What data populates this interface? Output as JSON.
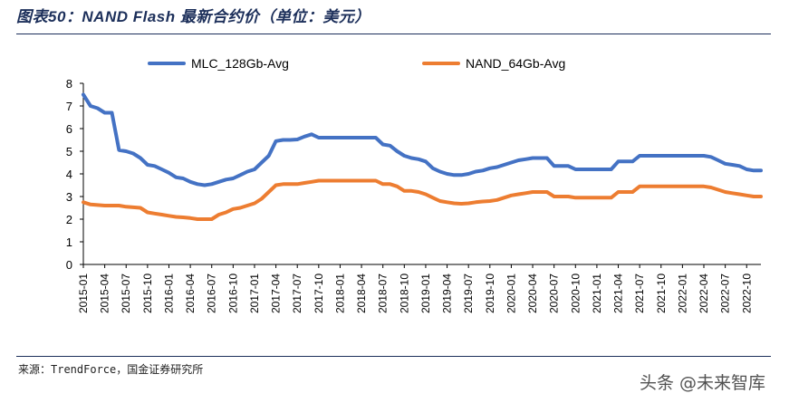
{
  "header": {
    "title": "图表50：NAND Flash 最新合约价（单位：美元）"
  },
  "footer": {
    "source": "来源：TrendForce，国金证券研究所",
    "watermark": "头条 @未来智库"
  },
  "chart_data": {
    "type": "line",
    "title": "",
    "xlabel": "",
    "ylabel": "",
    "ylim": [
      0,
      8
    ],
    "yticks": [
      "0",
      "1",
      "2",
      "3",
      "4",
      "5",
      "6",
      "7",
      "8"
    ],
    "grid": false,
    "legend_position": "top",
    "x_start": "2015-01",
    "x_end": "2022-12",
    "xtick_labels": [
      "2015-01",
      "2015-04",
      "2015-07",
      "2015-10",
      "2016-01",
      "2016-04",
      "2016-07",
      "2016-10",
      "2017-01",
      "2017-04",
      "2017-07",
      "2017-10",
      "2018-01",
      "2018-04",
      "2018-07",
      "2018-10",
      "2019-01",
      "2019-04",
      "2019-07",
      "2019-10",
      "2020-01",
      "2020-04",
      "2020-07",
      "2020-10",
      "2021-01",
      "2021-04",
      "2021-07",
      "2021-10",
      "2022-01",
      "2022-04",
      "2022-07",
      "2022-10"
    ],
    "series": [
      {
        "name": "MLC_128Gb-Avg",
        "color": "#4472c4",
        "points": [
          [
            "2015-01",
            7.5
          ],
          [
            "2015-02",
            7.0
          ],
          [
            "2015-03",
            6.9
          ],
          [
            "2015-04",
            6.7
          ],
          [
            "2015-05",
            6.7
          ],
          [
            "2015-06",
            5.05
          ],
          [
            "2015-07",
            5.0
          ],
          [
            "2015-08",
            4.9
          ],
          [
            "2015-09",
            4.7
          ],
          [
            "2015-10",
            4.4
          ],
          [
            "2015-11",
            4.35
          ],
          [
            "2015-12",
            4.2
          ],
          [
            "2016-01",
            4.05
          ],
          [
            "2016-02",
            3.85
          ],
          [
            "2016-03",
            3.8
          ],
          [
            "2016-04",
            3.65
          ],
          [
            "2016-05",
            3.55
          ],
          [
            "2016-06",
            3.5
          ],
          [
            "2016-07",
            3.55
          ],
          [
            "2016-08",
            3.65
          ],
          [
            "2016-09",
            3.75
          ],
          [
            "2016-10",
            3.8
          ],
          [
            "2016-11",
            3.95
          ],
          [
            "2016-12",
            4.1
          ],
          [
            "2017-01",
            4.2
          ],
          [
            "2017-02",
            4.5
          ],
          [
            "2017-03",
            4.8
          ],
          [
            "2017-04",
            5.45
          ],
          [
            "2017-05",
            5.5
          ],
          [
            "2017-06",
            5.5
          ],
          [
            "2017-07",
            5.52
          ],
          [
            "2017-08",
            5.65
          ],
          [
            "2017-09",
            5.75
          ],
          [
            "2017-10",
            5.6
          ],
          [
            "2018-01",
            5.6
          ],
          [
            "2018-04",
            5.6
          ],
          [
            "2018-06",
            5.6
          ],
          [
            "2018-07",
            5.3
          ],
          [
            "2018-08",
            5.25
          ],
          [
            "2018-09",
            5.0
          ],
          [
            "2018-10",
            4.8
          ],
          [
            "2018-11",
            4.7
          ],
          [
            "2018-12",
            4.65
          ],
          [
            "2019-01",
            4.55
          ],
          [
            "2019-02",
            4.25
          ],
          [
            "2019-03",
            4.1
          ],
          [
            "2019-04",
            4.0
          ],
          [
            "2019-05",
            3.95
          ],
          [
            "2019-06",
            3.95
          ],
          [
            "2019-07",
            4.0
          ],
          [
            "2019-08",
            4.1
          ],
          [
            "2019-09",
            4.15
          ],
          [
            "2019-10",
            4.25
          ],
          [
            "2019-11",
            4.3
          ],
          [
            "2019-12",
            4.4
          ],
          [
            "2020-01",
            4.5
          ],
          [
            "2020-02",
            4.6
          ],
          [
            "2020-03",
            4.65
          ],
          [
            "2020-04",
            4.7
          ],
          [
            "2020-06",
            4.7
          ],
          [
            "2020-07",
            4.35
          ],
          [
            "2020-09",
            4.35
          ],
          [
            "2020-10",
            4.2
          ],
          [
            "2021-01",
            4.2
          ],
          [
            "2021-03",
            4.2
          ],
          [
            "2021-04",
            4.55
          ],
          [
            "2021-06",
            4.55
          ],
          [
            "2021-07",
            4.8
          ],
          [
            "2021-10",
            4.8
          ],
          [
            "2022-04",
            4.8
          ],
          [
            "2022-05",
            4.75
          ],
          [
            "2022-06",
            4.6
          ],
          [
            "2022-07",
            4.45
          ],
          [
            "2022-08",
            4.4
          ],
          [
            "2022-09",
            4.35
          ],
          [
            "2022-10",
            4.2
          ],
          [
            "2022-11",
            4.15
          ],
          [
            "2022-12",
            4.15
          ]
        ]
      },
      {
        "name": "NAND_64Gb-Avg",
        "color": "#ed7d31",
        "points": [
          [
            "2015-01",
            2.75
          ],
          [
            "2015-02",
            2.65
          ],
          [
            "2015-04",
            2.6
          ],
          [
            "2015-06",
            2.6
          ],
          [
            "2015-07",
            2.55
          ],
          [
            "2015-09",
            2.5
          ],
          [
            "2015-10",
            2.3
          ],
          [
            "2015-11",
            2.25
          ],
          [
            "2015-12",
            2.2
          ],
          [
            "2016-01",
            2.15
          ],
          [
            "2016-02",
            2.1
          ],
          [
            "2016-03",
            2.08
          ],
          [
            "2016-04",
            2.05
          ],
          [
            "2016-05",
            2.0
          ],
          [
            "2016-06",
            2.0
          ],
          [
            "2016-07",
            2.0
          ],
          [
            "2016-08",
            2.2
          ],
          [
            "2016-09",
            2.3
          ],
          [
            "2016-10",
            2.45
          ],
          [
            "2016-11",
            2.5
          ],
          [
            "2016-12",
            2.6
          ],
          [
            "2017-01",
            2.7
          ],
          [
            "2017-02",
            2.9
          ],
          [
            "2017-03",
            3.2
          ],
          [
            "2017-04",
            3.5
          ],
          [
            "2017-05",
            3.55
          ],
          [
            "2017-06",
            3.55
          ],
          [
            "2017-07",
            3.55
          ],
          [
            "2017-08",
            3.6
          ],
          [
            "2017-09",
            3.65
          ],
          [
            "2017-10",
            3.7
          ],
          [
            "2018-01",
            3.7
          ],
          [
            "2018-04",
            3.7
          ],
          [
            "2018-06",
            3.7
          ],
          [
            "2018-07",
            3.55
          ],
          [
            "2018-08",
            3.55
          ],
          [
            "2018-09",
            3.45
          ],
          [
            "2018-10",
            3.25
          ],
          [
            "2018-11",
            3.25
          ],
          [
            "2018-12",
            3.2
          ],
          [
            "2019-01",
            3.1
          ],
          [
            "2019-02",
            2.95
          ],
          [
            "2019-03",
            2.8
          ],
          [
            "2019-04",
            2.75
          ],
          [
            "2019-05",
            2.7
          ],
          [
            "2019-06",
            2.68
          ],
          [
            "2019-07",
            2.7
          ],
          [
            "2019-08",
            2.75
          ],
          [
            "2019-09",
            2.78
          ],
          [
            "2019-10",
            2.8
          ],
          [
            "2019-11",
            2.85
          ],
          [
            "2019-12",
            2.95
          ],
          [
            "2020-01",
            3.05
          ],
          [
            "2020-02",
            3.1
          ],
          [
            "2020-03",
            3.15
          ],
          [
            "2020-04",
            3.2
          ],
          [
            "2020-06",
            3.2
          ],
          [
            "2020-07",
            3.0
          ],
          [
            "2020-09",
            3.0
          ],
          [
            "2020-10",
            2.95
          ],
          [
            "2021-01",
            2.95
          ],
          [
            "2021-03",
            2.95
          ],
          [
            "2021-04",
            3.2
          ],
          [
            "2021-06",
            3.2
          ],
          [
            "2021-07",
            3.45
          ],
          [
            "2021-10",
            3.45
          ],
          [
            "2022-04",
            3.45
          ],
          [
            "2022-05",
            3.4
          ],
          [
            "2022-06",
            3.3
          ],
          [
            "2022-07",
            3.2
          ],
          [
            "2022-08",
            3.15
          ],
          [
            "2022-09",
            3.1
          ],
          [
            "2022-10",
            3.05
          ],
          [
            "2022-11",
            3.0
          ],
          [
            "2022-12",
            3.0
          ]
        ]
      }
    ]
  }
}
